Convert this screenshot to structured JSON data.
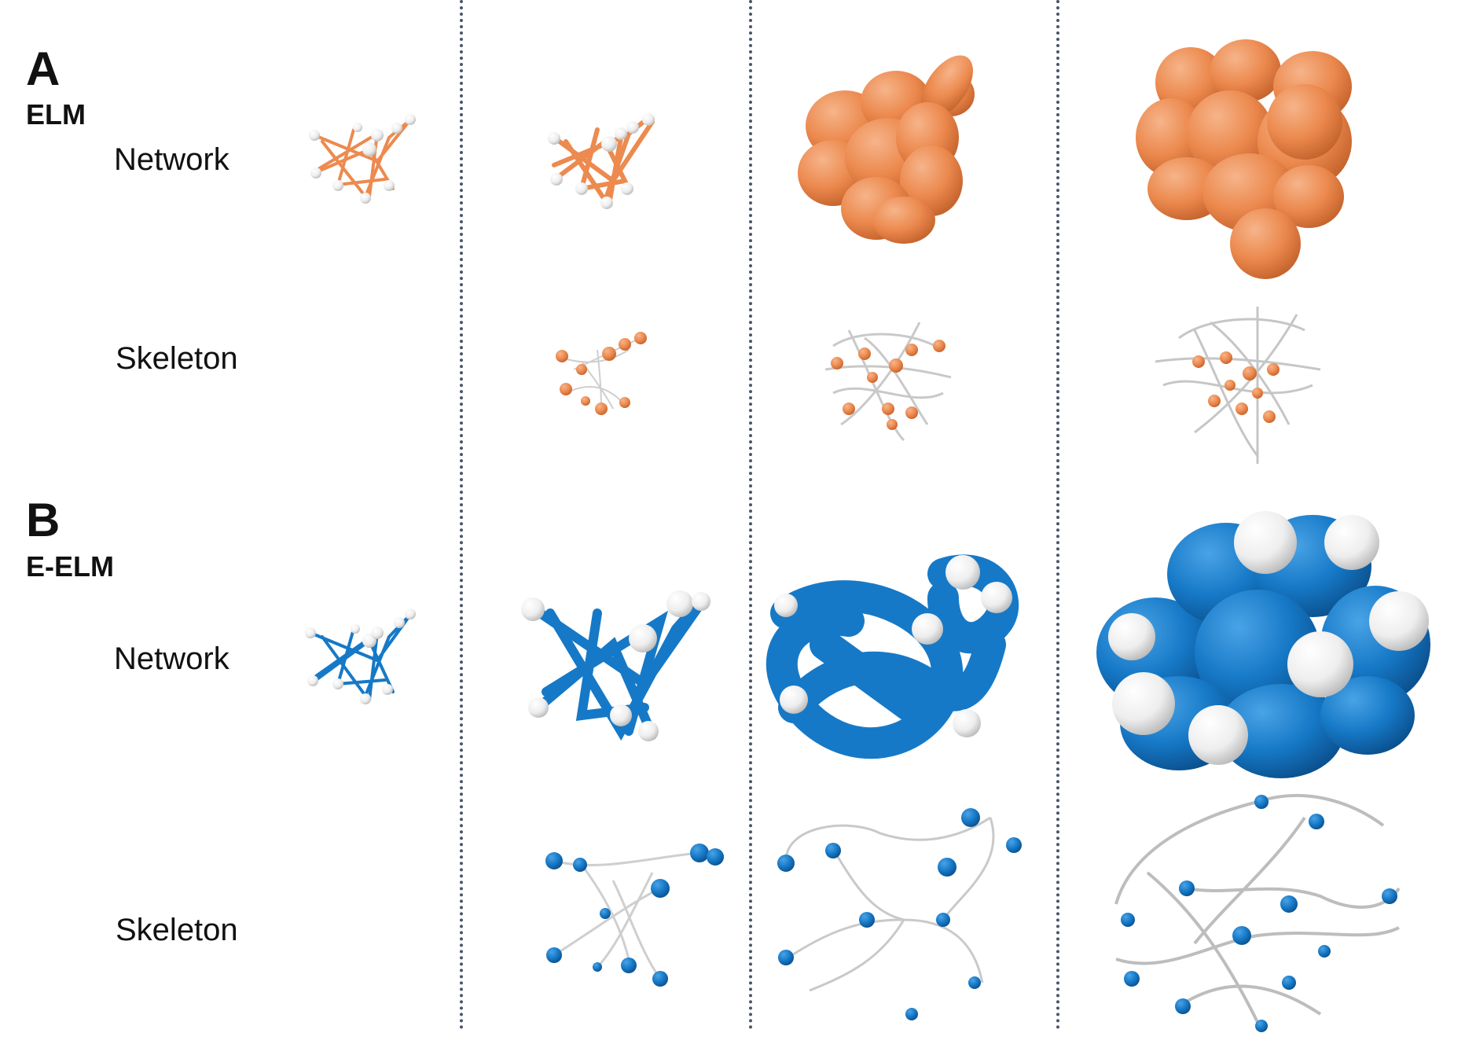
{
  "panels": [
    {
      "letter": "A",
      "name": "ELM",
      "rows": [
        {
          "label": "Network"
        },
        {
          "label": "Skeleton"
        }
      ]
    },
    {
      "letter": "B",
      "name": "E-ELM",
      "rows": [
        {
          "label": "Network"
        },
        {
          "label": "Skeleton"
        }
      ]
    }
  ],
  "colors": {
    "elm": "#ec8a4f",
    "eelm": "#1679c7",
    "node_light": "#f2f2f2",
    "edge_light": "#c8c8c8",
    "divider": "#4a5568"
  }
}
